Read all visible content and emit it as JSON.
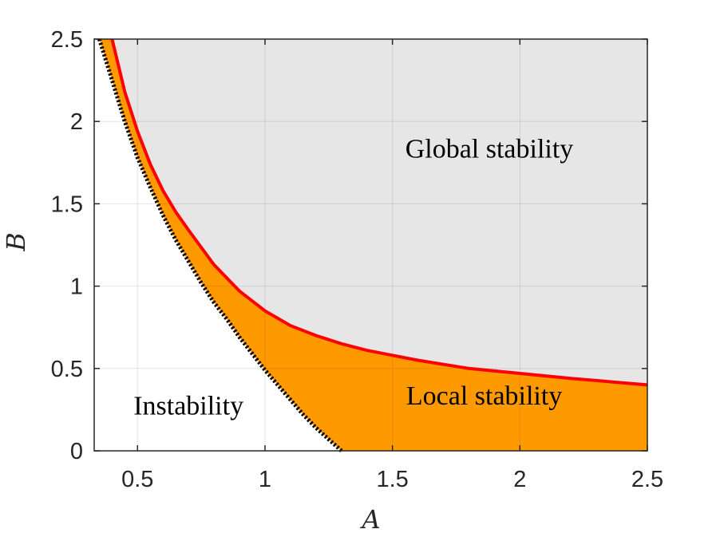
{
  "chart_data": {
    "type": "area",
    "xlabel": "A",
    "ylabel": "B",
    "xlim": [
      0.33,
      2.5
    ],
    "ylim": [
      0,
      2.5
    ],
    "xticks": [
      "0.5",
      "1",
      "1.5",
      "2",
      "2.5"
    ],
    "xtick_values": [
      0.5,
      1,
      1.5,
      2,
      2.5
    ],
    "yticks": [
      "0",
      "0.5",
      "1",
      "1.5",
      "2",
      "2.5"
    ],
    "ytick_values": [
      0,
      0.5,
      1,
      1.5,
      2,
      2.5
    ],
    "grid": true,
    "regions": [
      {
        "name": "Instability",
        "label": "Instability",
        "color": "#ffffff",
        "label_at": [
          0.7,
          0.22
        ]
      },
      {
        "name": "Local stability",
        "label": "Local stability",
        "color": "#ff9900",
        "label_at": [
          1.86,
          0.28
        ]
      },
      {
        "name": "Global stability",
        "label": "Global stability",
        "color": "#e6e6e6",
        "label_at": [
          1.88,
          1.78
        ]
      }
    ],
    "boundaries": [
      {
        "role": "instability-boundary",
        "style": "dotted",
        "color": "#000000",
        "x": [
          0.35,
          0.4,
          0.45,
          0.5,
          0.55,
          0.6,
          0.65,
          0.7,
          0.75,
          0.8,
          0.85,
          0.9,
          0.95,
          1.0,
          1.05,
          1.1,
          1.15,
          1.2,
          1.25,
          1.3
        ],
        "y": [
          2.5,
          2.25,
          2.0,
          1.78,
          1.6,
          1.43,
          1.28,
          1.15,
          1.02,
          0.9,
          0.8,
          0.69,
          0.59,
          0.49,
          0.4,
          0.31,
          0.22,
          0.14,
          0.07,
          0.0
        ]
      },
      {
        "role": "global-stability-boundary",
        "style": "solid",
        "color": "#ff0000",
        "x": [
          0.4,
          0.45,
          0.5,
          0.55,
          0.6,
          0.65,
          0.7,
          0.8,
          0.9,
          1.0,
          1.1,
          1.2,
          1.3,
          1.4,
          1.5,
          1.6,
          1.8,
          2.0,
          2.2,
          2.5
        ],
        "y": [
          2.5,
          2.18,
          1.94,
          1.74,
          1.58,
          1.45,
          1.34,
          1.13,
          0.97,
          0.85,
          0.76,
          0.7,
          0.65,
          0.61,
          0.58,
          0.55,
          0.5,
          0.47,
          0.44,
          0.4
        ]
      }
    ]
  }
}
